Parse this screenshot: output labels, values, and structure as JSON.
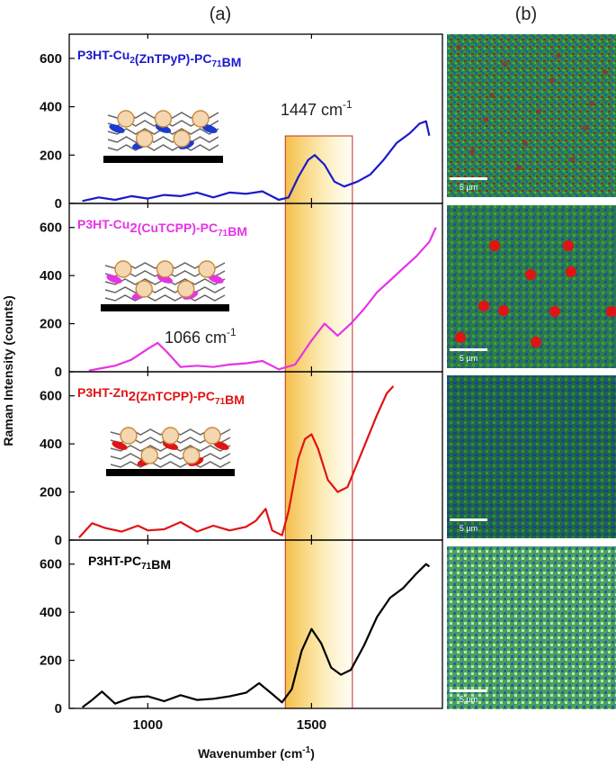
{
  "panels": {
    "a": "(a)",
    "b": "(b)"
  },
  "colors": {
    "blue": "#1a1acc",
    "magenta": "#e633e6",
    "red": "#e01414",
    "black": "#000000",
    "highlight_top": "#f5c842",
    "highlight_bottom": "#fff8d8",
    "highlight_border": "#c0302a"
  },
  "annotations": {
    "peak_1447": {
      "number": "1447",
      "unit": "cm",
      "exp": "-1"
    },
    "peak_1066": {
      "number": "1066",
      "unit": "cm",
      "exp": "-1"
    }
  },
  "micrographs": [
    {
      "scale_bar": "5 µm",
      "style": "green-red"
    },
    {
      "scale_bar": "5 µm",
      "style": "spots"
    },
    {
      "scale_bar": "5 µm",
      "style": "blue-green"
    },
    {
      "scale_bar": "5 µm",
      "style": "light-green"
    }
  ],
  "chart_data": {
    "type": "line",
    "title": "",
    "xlabel": {
      "text": "Wavenumber (cm",
      "sup": "-1",
      "close": ")"
    },
    "ylabel": "Raman Intensity (counts)",
    "xlim": [
      760,
      1900
    ],
    "ylim": [
      0,
      700
    ],
    "xticks": [
      1000,
      1500
    ],
    "yticks": [
      0,
      200,
      400,
      600
    ],
    "highlight_region": [
      1420,
      1625
    ],
    "series": [
      {
        "id": "blue",
        "name_parts": [
          {
            "t": "P3HT-Cu"
          },
          {
            "t": "2",
            "sub": true
          },
          {
            "t": "(ZnTPyP)-PC"
          },
          {
            "t": "71",
            "sub": true
          },
          {
            "t": "BM"
          }
        ],
        "color": "#1a1acc",
        "x": [
          800,
          850,
          900,
          950,
          1000,
          1050,
          1100,
          1150,
          1200,
          1250,
          1300,
          1350,
          1400,
          1430,
          1460,
          1490,
          1510,
          1540,
          1570,
          1600,
          1640,
          1680,
          1720,
          1760,
          1800,
          1830,
          1850,
          1860
        ],
        "y": [
          10,
          25,
          15,
          30,
          20,
          35,
          30,
          45,
          25,
          45,
          40,
          50,
          15,
          25,
          110,
          180,
          200,
          160,
          90,
          70,
          90,
          120,
          180,
          250,
          290,
          330,
          340,
          280
        ]
      },
      {
        "id": "magenta",
        "name_parts": [
          {
            "t": "P3HT-Cu"
          },
          {
            "t": "2",
            "sub": true,
            "big": true
          },
          {
            "t": "(CuTCPP)-PC"
          },
          {
            "t": "71",
            "sub": true
          },
          {
            "t": "BM"
          }
        ],
        "color": "#e633e6",
        "x": [
          820,
          860,
          900,
          950,
          1000,
          1030,
          1060,
          1100,
          1150,
          1200,
          1250,
          1300,
          1350,
          1400,
          1450,
          1500,
          1540,
          1580,
          1620,
          1660,
          1700,
          1740,
          1780,
          1820,
          1860,
          1880
        ],
        "y": [
          5,
          15,
          25,
          50,
          95,
          120,
          80,
          20,
          25,
          20,
          30,
          35,
          45,
          10,
          30,
          130,
          200,
          150,
          200,
          260,
          330,
          380,
          430,
          480,
          540,
          600
        ]
      },
      {
        "id": "red",
        "name_parts": [
          {
            "t": "P3HT-Zn"
          },
          {
            "t": "2",
            "sub": true,
            "big": true
          },
          {
            "t": "(ZnTCPP)-PC"
          },
          {
            "t": "71",
            "sub": true
          },
          {
            "t": "BM"
          }
        ],
        "color": "#e01414",
        "x": [
          790,
          830,
          870,
          920,
          970,
          1000,
          1050,
          1100,
          1150,
          1200,
          1250,
          1300,
          1330,
          1360,
          1380,
          1410,
          1430,
          1460,
          1480,
          1500,
          1520,
          1550,
          1580,
          1610,
          1640,
          1670,
          1700,
          1730,
          1750
        ],
        "y": [
          10,
          70,
          50,
          35,
          60,
          40,
          45,
          75,
          35,
          60,
          40,
          55,
          80,
          130,
          40,
          20,
          120,
          340,
          420,
          440,
          380,
          250,
          200,
          220,
          320,
          420,
          520,
          610,
          640
        ]
      },
      {
        "id": "black",
        "name_parts": [
          {
            "t": "P3HT-PC"
          },
          {
            "t": "71",
            "sub": true
          },
          {
            "t": "BM"
          }
        ],
        "color": "#000000",
        "x": [
          800,
          830,
          860,
          900,
          950,
          1000,
          1050,
          1100,
          1150,
          1200,
          1250,
          1300,
          1340,
          1380,
          1410,
          1440,
          1470,
          1500,
          1530,
          1560,
          1590,
          1620,
          1660,
          1700,
          1740,
          1780,
          1820,
          1850,
          1860
        ],
        "y": [
          5,
          35,
          70,
          20,
          45,
          50,
          30,
          55,
          35,
          40,
          50,
          65,
          105,
          60,
          25,
          80,
          240,
          330,
          270,
          170,
          140,
          160,
          260,
          380,
          460,
          500,
          560,
          600,
          590
        ]
      }
    ]
  }
}
